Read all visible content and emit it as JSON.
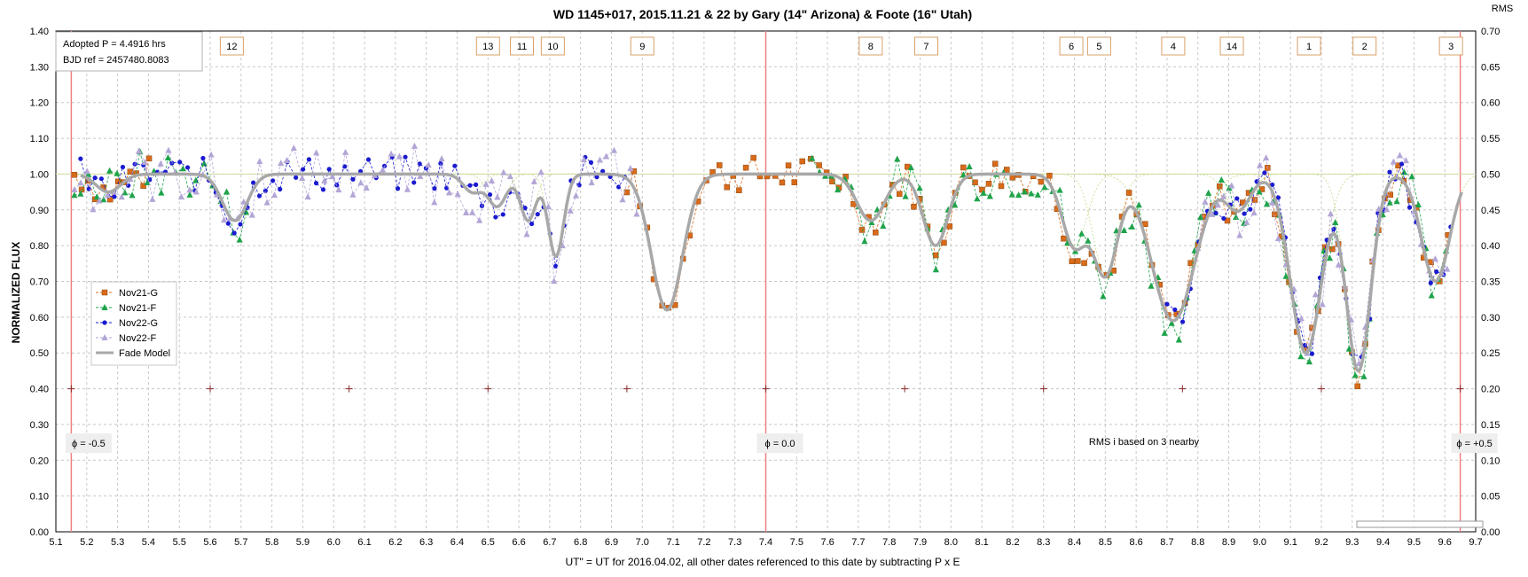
{
  "chart_data": {
    "type": "scatter",
    "title": "WD 1145+017,  2015.11.21  & 22 by  Gary (14\" Arizona) & Foote (16\" Utah)",
    "xlabel": "UT\" = UT for 2016.04.02, all other dates referenced  to this date by subtracting  P x E",
    "ylabel": "NORMALIZED FLUX",
    "y2label": "RMS",
    "xlim": [
      5.1,
      9.7
    ],
    "ylim": [
      0.0,
      1.4
    ],
    "y2lim": [
      0.0,
      0.7
    ],
    "x_ticks": [
      "5.1",
      "5.2",
      "5.3",
      "5.4",
      "5.5",
      "5.6",
      "5.7",
      "5.8",
      "5.9",
      "6.0",
      "6.1",
      "6.2",
      "6.3",
      "6.4",
      "6.5",
      "6.6",
      "6.7",
      "6.8",
      "6.9",
      "7.0",
      "7.1",
      "7.2",
      "7.3",
      "7.4",
      "7.5",
      "7.6",
      "7.7",
      "7.8",
      "7.9",
      "8.0",
      "8.1",
      "8.2",
      "8.3",
      "8.4",
      "8.5",
      "8.6",
      "8.7",
      "8.8",
      "8.9",
      "9.0",
      "9.1",
      "9.2",
      "9.3",
      "9.4",
      "9.5",
      "9.6",
      "9.7"
    ],
    "y_ticks": [
      "0.00",
      "0.10",
      "0.20",
      "0.30",
      "0.40",
      "0.50",
      "0.60",
      "0.70",
      "0.80",
      "0.90",
      "1.00",
      "1.10",
      "1.20",
      "1.30",
      "1.40"
    ],
    "y2_ticks": [
      "0.00",
      "0.05",
      "0.10",
      "0.15",
      "0.20",
      "0.25",
      "0.30",
      "0.35",
      "0.40",
      "0.45",
      "0.50",
      "0.55",
      "0.60",
      "0.65",
      "0.70"
    ],
    "grid": true,
    "legend_placement": "left",
    "legend": [
      {
        "name": "Nov21-G",
        "color": "#d96a1a",
        "marker": "square"
      },
      {
        "name": "Nov21-F",
        "color": "#1ea34a",
        "marker": "triangle"
      },
      {
        "name": "Nov22-G",
        "color": "#1a1ad0",
        "marker": "circle"
      },
      {
        "name": "Nov22-F",
        "color": "#b3a6d6",
        "marker": "triangle"
      },
      {
        "name": "Fade Model",
        "color": "#a8a8a8",
        "marker": "line"
      }
    ],
    "info_box": [
      "Adopted P = 4.4916  hrs",
      "BJD ref = 2457480.8083"
    ],
    "phase_labels": [
      {
        "text": "ϕ = -0.5",
        "x": 5.16
      },
      {
        "text": "ϕ = 0.0",
        "x": 7.4
      },
      {
        "text": "ϕ = +0.5",
        "x": 9.65
      }
    ],
    "phase_lines_x": [
      5.15,
      7.4,
      9.65
    ],
    "rms_note": "RMS i based on 3 nearby",
    "period_marks_x": [
      5.15,
      5.6,
      6.05,
      6.5,
      6.95,
      7.4,
      7.85,
      8.3,
      8.75,
      9.2,
      9.65
    ],
    "period_marks_y": 0.4,
    "dip_labels": [
      {
        "text": "12",
        "x": 5.67
      },
      {
        "text": "13",
        "x": 6.5
      },
      {
        "text": "11",
        "x": 6.61
      },
      {
        "text": "10",
        "x": 6.71
      },
      {
        "text": "9",
        "x": 7.0
      },
      {
        "text": "8",
        "x": 7.74
      },
      {
        "text": "7",
        "x": 7.92
      },
      {
        "text": "6",
        "x": 8.39
      },
      {
        "text": "5",
        "x": 8.48
      },
      {
        "text": "4",
        "x": 8.72
      },
      {
        "text": "14",
        "x": 8.91
      },
      {
        "text": "1",
        "x": 9.16
      },
      {
        "text": "2",
        "x": 9.34
      },
      {
        "text": "3",
        "x": 9.62
      }
    ],
    "model_dips": [
      {
        "x": 5.27,
        "depth": 0.05,
        "w": 0.04
      },
      {
        "x": 5.68,
        "depth": 0.13,
        "w": 0.04
      },
      {
        "x": 6.45,
        "depth": 0.05,
        "w": 0.03
      },
      {
        "x": 6.53,
        "depth": 0.09,
        "w": 0.03
      },
      {
        "x": 6.63,
        "depth": 0.13,
        "w": 0.025
      },
      {
        "x": 6.72,
        "depth": 0.23,
        "w": 0.025
      },
      {
        "x": 7.08,
        "depth": 0.38,
        "w": 0.05
      },
      {
        "x": 7.74,
        "depth": 0.13,
        "w": 0.045
      },
      {
        "x": 7.95,
        "depth": 0.2,
        "w": 0.04
      },
      {
        "x": 8.4,
        "depth": 0.2,
        "w": 0.04
      },
      {
        "x": 8.5,
        "depth": 0.28,
        "w": 0.04
      },
      {
        "x": 8.72,
        "depth": 0.41,
        "w": 0.07
      },
      {
        "x": 8.93,
        "depth": 0.1,
        "w": 0.04
      },
      {
        "x": 9.15,
        "depth": 0.5,
        "w": 0.05
      },
      {
        "x": 9.32,
        "depth": 0.55,
        "w": 0.04
      },
      {
        "x": 9.57,
        "depth": 0.3,
        "w": 0.045
      }
    ],
    "series": [
      {
        "name": "Nov21-G",
        "color": "#d96a1a",
        "marker": "square",
        "x_range": [
          5.16,
          5.42
        ],
        "x_range2": [
          6.95,
          9.62
        ],
        "scatter": 0.05
      },
      {
        "name": "Nov21-F",
        "color": "#1ea34a",
        "marker": "triangle",
        "x_range": [
          5.16,
          5.72
        ],
        "x_range2": [
          7.55,
          9.62
        ],
        "scatter": 0.07
      },
      {
        "name": "Nov22-G",
        "color": "#1a1ad0",
        "marker": "circle",
        "x_range": [
          5.18,
          6.95
        ],
        "x_range2": [
          8.7,
          9.62
        ],
        "scatter": 0.05
      },
      {
        "name": "Nov22-F",
        "color": "#b3a6d6",
        "marker": "triangle",
        "x_range": [
          5.16,
          7.0
        ],
        "x_range2": [
          8.8,
          9.62
        ],
        "scatter": 0.08
      }
    ]
  }
}
